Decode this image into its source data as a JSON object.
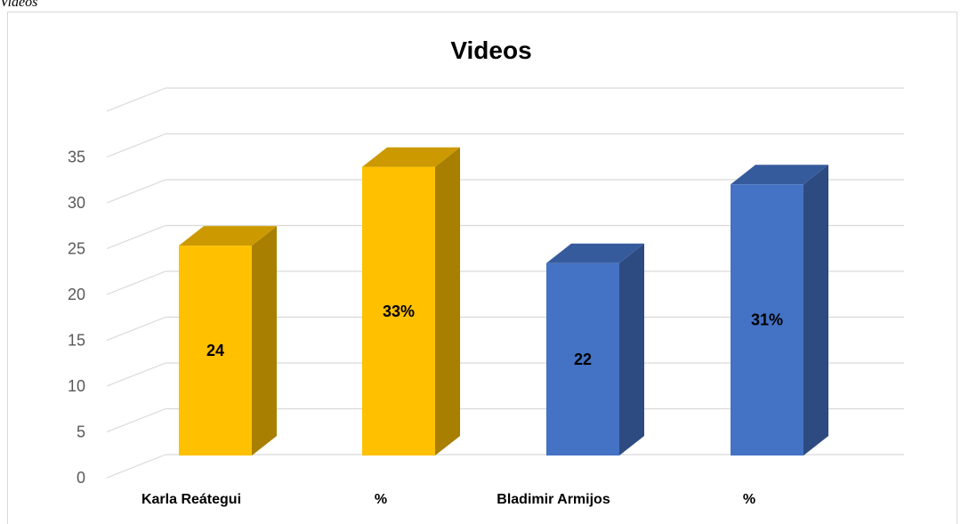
{
  "caption": "Videos",
  "chart_data": {
    "type": "bar",
    "title": "Videos",
    "categories": [
      "Karla Reátegui",
      "%",
      "Bladimir Armijos",
      "%"
    ],
    "values": [
      24,
      33,
      22,
      31
    ],
    "data_labels": [
      "24",
      "33%",
      "22",
      "31%"
    ],
    "bar_colors": [
      "#FFC000",
      "#FFC000",
      "#4472C4",
      "#4472C4"
    ],
    "ylim": [
      0,
      35
    ],
    "yticks": [
      0,
      5,
      10,
      15,
      20,
      25,
      30,
      35
    ],
    "grid": true,
    "legend": "none",
    "style": "3d-column"
  }
}
